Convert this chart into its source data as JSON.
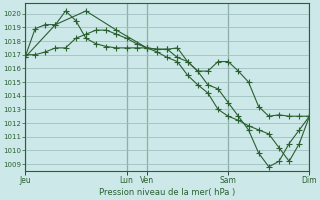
{
  "xlabel": "Pression niveau de la mer( hPa )",
  "background_color": "#cce8e8",
  "grid_color": "#a0c0c0",
  "line_color": "#2a6030",
  "ylim": [
    1008.5,
    1020.8
  ],
  "yticks": [
    1009,
    1010,
    1011,
    1012,
    1013,
    1014,
    1015,
    1016,
    1017,
    1018,
    1019,
    1020
  ],
  "xlim": [
    0,
    14
  ],
  "day_positions": [
    0,
    5,
    6,
    10,
    14
  ],
  "day_labels": [
    "Jeu",
    "Lun",
    "Ven",
    "Sam",
    "Dim"
  ],
  "line1_x": [
    0.0,
    0.5,
    1.0,
    1.5,
    2.0,
    2.5,
    3.0,
    3.5,
    4.0,
    4.5,
    5.0,
    5.5,
    6.0,
    6.5,
    7.0,
    7.5,
    8.0,
    8.5,
    9.0,
    9.5,
    10.0,
    10.5,
    11.0,
    11.5,
    12.0,
    12.5,
    13.0,
    13.5,
    14.0
  ],
  "line1_y": [
    1016.8,
    1018.9,
    1019.2,
    1019.2,
    1020.2,
    1019.5,
    1018.2,
    1017.8,
    1017.6,
    1017.5,
    1017.5,
    1017.5,
    1017.5,
    1017.4,
    1017.4,
    1016.8,
    1016.5,
    1015.8,
    1015.8,
    1016.5,
    1016.5,
    1015.8,
    1015.0,
    1013.2,
    1012.5,
    1012.6,
    1012.5,
    1012.5,
    1012.5
  ],
  "line2_x": [
    0.0,
    0.5,
    1.0,
    1.5,
    2.0,
    2.5,
    3.0,
    3.5,
    4.0,
    4.5,
    5.0,
    5.5,
    6.0,
    6.5,
    7.0,
    7.5,
    8.0,
    8.5,
    9.0,
    9.5,
    10.0,
    10.5,
    11.0,
    11.5,
    12.0,
    12.5,
    13.0,
    13.5,
    14.0
  ],
  "line2_y": [
    1017.0,
    1017.0,
    1017.2,
    1017.5,
    1017.5,
    1018.2,
    1018.5,
    1018.8,
    1018.8,
    1018.5,
    1018.2,
    1017.8,
    1017.5,
    1017.4,
    1017.4,
    1017.5,
    1016.5,
    1015.8,
    1014.8,
    1014.5,
    1013.5,
    1012.5,
    1011.5,
    1009.8,
    1008.8,
    1009.2,
    1010.5,
    1011.5,
    1012.5
  ],
  "line3_x": [
    0.0,
    1.5,
    3.0,
    4.5,
    6.0,
    6.5,
    7.0,
    7.5,
    8.0,
    8.5,
    9.0,
    9.5,
    10.0,
    10.5,
    11.0,
    11.5,
    12.0,
    12.5,
    13.0,
    13.5,
    14.0
  ],
  "line3_y": [
    1016.8,
    1019.2,
    1020.2,
    1018.8,
    1017.5,
    1017.2,
    1016.8,
    1016.5,
    1015.5,
    1014.8,
    1014.2,
    1013.0,
    1012.5,
    1012.2,
    1011.8,
    1011.5,
    1011.2,
    1010.2,
    1009.2,
    1010.5,
    1012.5
  ]
}
